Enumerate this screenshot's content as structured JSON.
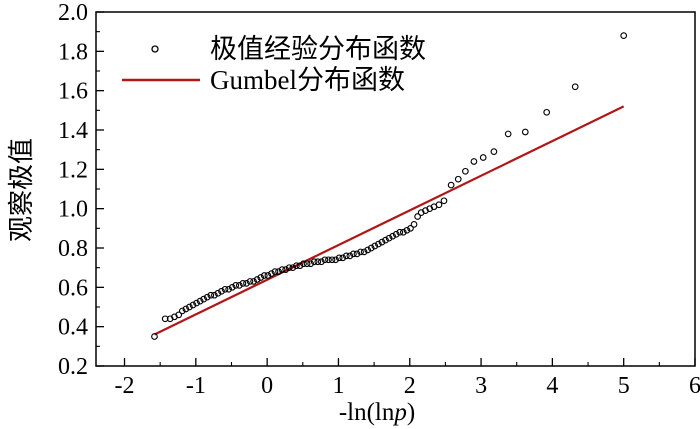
{
  "chart_data": {
    "type": "scatter",
    "title": "",
    "xlabel_prefix": "-ln(ln",
    "xlabel_italic": "p",
    "xlabel_suffix": ")",
    "ylabel": "观察极值",
    "xlim": [
      -2.4,
      6.0
    ],
    "ylim": [
      0.2,
      2.0
    ],
    "xticks": [
      -2,
      -1,
      0,
      1,
      2,
      3,
      4,
      5,
      6
    ],
    "yticks": [
      0.2,
      0.4,
      0.6,
      0.8,
      1.0,
      1.2,
      1.4,
      1.6,
      1.8,
      2.0
    ],
    "xtick_labels": [
      "-2",
      "-1",
      "0",
      "1",
      "2",
      "3",
      "4",
      "5",
      "6"
    ],
    "ytick_labels": [
      "0.2",
      "0.4",
      "0.6",
      "0.8",
      "1.0",
      "1.2",
      "1.4",
      "1.6",
      "1.8",
      "2.0"
    ],
    "grid": false,
    "legend_position": "top-left",
    "legend": [
      {
        "label": "极值经验分布函数",
        "marker": "circle"
      },
      {
        "label": "Gumbel分布函数",
        "marker": "line"
      }
    ],
    "series": [
      {
        "name": "极值经验分布函数",
        "kind": "scatter",
        "color": "#000000",
        "points": [
          [
            -1.58,
            0.35
          ],
          [
            -1.43,
            0.44
          ],
          [
            -1.36,
            0.44
          ],
          [
            -1.3,
            0.45
          ],
          [
            -1.24,
            0.46
          ],
          [
            -1.19,
            0.48
          ],
          [
            -1.14,
            0.49
          ],
          [
            -1.09,
            0.5
          ],
          [
            -1.04,
            0.51
          ],
          [
            -0.99,
            0.52
          ],
          [
            -0.94,
            0.53
          ],
          [
            -0.89,
            0.54
          ],
          [
            -0.84,
            0.55
          ],
          [
            -0.79,
            0.56
          ],
          [
            -0.74,
            0.56
          ],
          [
            -0.69,
            0.57
          ],
          [
            -0.64,
            0.58
          ],
          [
            -0.59,
            0.59
          ],
          [
            -0.54,
            0.59
          ],
          [
            -0.49,
            0.6
          ],
          [
            -0.44,
            0.61
          ],
          [
            -0.39,
            0.61
          ],
          [
            -0.34,
            0.62
          ],
          [
            -0.29,
            0.62
          ],
          [
            -0.24,
            0.63
          ],
          [
            -0.19,
            0.63
          ],
          [
            -0.14,
            0.64
          ],
          [
            -0.09,
            0.65
          ],
          [
            -0.04,
            0.66
          ],
          [
            0.01,
            0.66
          ],
          [
            0.06,
            0.67
          ],
          [
            0.11,
            0.68
          ],
          [
            0.16,
            0.68
          ],
          [
            0.21,
            0.69
          ],
          [
            0.26,
            0.69
          ],
          [
            0.31,
            0.7
          ],
          [
            0.36,
            0.7
          ],
          [
            0.41,
            0.71
          ],
          [
            0.46,
            0.71
          ],
          [
            0.51,
            0.72
          ],
          [
            0.56,
            0.72
          ],
          [
            0.61,
            0.72
          ],
          [
            0.66,
            0.73
          ],
          [
            0.71,
            0.73
          ],
          [
            0.76,
            0.73
          ],
          [
            0.81,
            0.74
          ],
          [
            0.86,
            0.74
          ],
          [
            0.91,
            0.74
          ],
          [
            0.96,
            0.74
          ],
          [
            1.01,
            0.75
          ],
          [
            1.06,
            0.75
          ],
          [
            1.11,
            0.76
          ],
          [
            1.16,
            0.76
          ],
          [
            1.21,
            0.77
          ],
          [
            1.26,
            0.77
          ],
          [
            1.31,
            0.78
          ],
          [
            1.36,
            0.78
          ],
          [
            1.41,
            0.79
          ],
          [
            1.46,
            0.8
          ],
          [
            1.51,
            0.81
          ],
          [
            1.56,
            0.82
          ],
          [
            1.61,
            0.83
          ],
          [
            1.66,
            0.84
          ],
          [
            1.71,
            0.85
          ],
          [
            1.76,
            0.86
          ],
          [
            1.81,
            0.87
          ],
          [
            1.86,
            0.88
          ],
          [
            1.91,
            0.88
          ],
          [
            1.96,
            0.89
          ],
          [
            2.01,
            0.9
          ],
          [
            2.06,
            0.92
          ],
          [
            2.11,
            0.96
          ],
          [
            2.16,
            0.98
          ],
          [
            2.22,
            0.99
          ],
          [
            2.28,
            1.0
          ],
          [
            2.34,
            1.01
          ],
          [
            2.41,
            1.02
          ],
          [
            2.48,
            1.04
          ],
          [
            2.58,
            1.12
          ],
          [
            2.68,
            1.15
          ],
          [
            2.78,
            1.19
          ],
          [
            2.9,
            1.24
          ],
          [
            3.03,
            1.26
          ],
          [
            3.18,
            1.29
          ],
          [
            3.38,
            1.38
          ],
          [
            3.62,
            1.39
          ],
          [
            3.92,
            1.49
          ],
          [
            4.32,
            1.62
          ],
          [
            5.0,
            1.88
          ]
        ]
      },
      {
        "name": "Gumbel分布函数",
        "kind": "line",
        "color": "#b01818",
        "points": [
          [
            -1.58,
            0.36
          ],
          [
            5.0,
            1.52
          ]
        ]
      }
    ]
  }
}
